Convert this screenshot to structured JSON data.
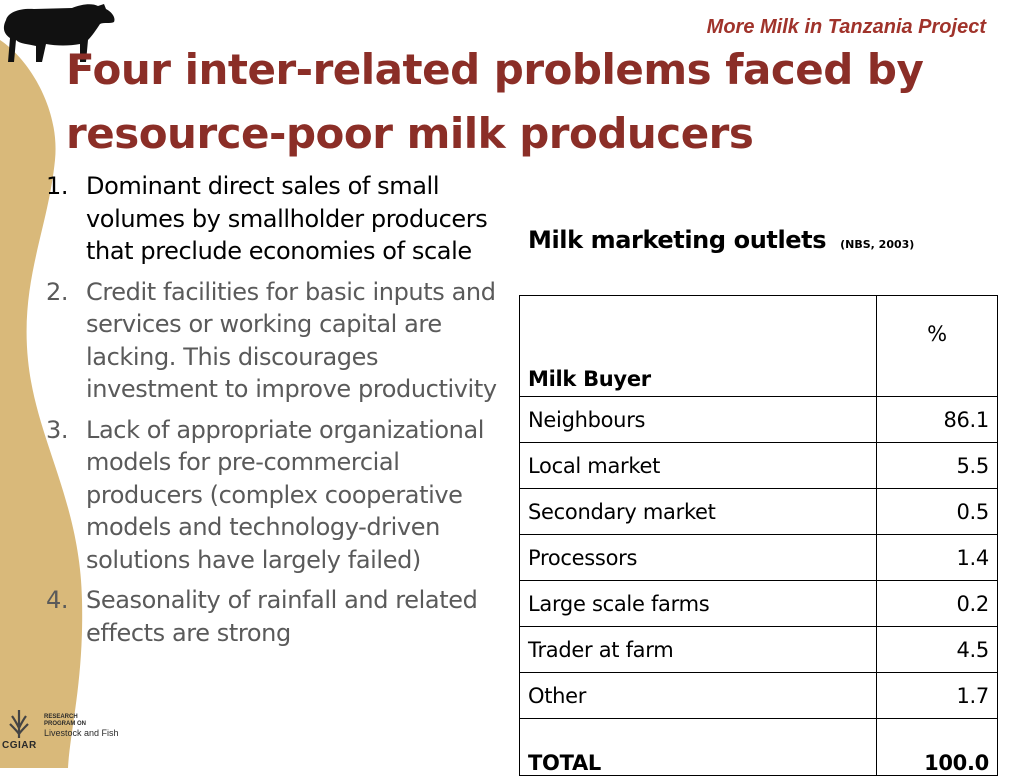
{
  "header": {
    "project_label": "More Milk in Tanzania Project",
    "title": "Four inter-related problems faced by resource-poor milk producers"
  },
  "problems": [
    {
      "num": "1.",
      "text": "Dominant direct sales of small volumes by smallholder producers that preclude economies of scale"
    },
    {
      "num": "2.",
      "text": "Credit facilities for basic inputs and services or working capital are lacking. This discourages investment to improve productivity"
    },
    {
      "num": "3.",
      "text": "Lack of appropriate organizational models for pre-commercial producers (complex cooperative models and technology-driven solutions have largely failed)"
    },
    {
      "num": "4.",
      "text": "Seasonality of rainfall  and related effects are strong"
    }
  ],
  "table": {
    "title": "Milk marketing outlets",
    "source": "(NBS, 2003)",
    "header": {
      "buyer": "Milk Buyer",
      "percent": "%"
    },
    "rows": [
      {
        "buyer": "Neighbours",
        "percent": "86.1"
      },
      {
        "buyer": "Local market",
        "percent": "5.5"
      },
      {
        "buyer": "Secondary market",
        "percent": "0.5"
      },
      {
        "buyer": "Processors",
        "percent": "1.4"
      },
      {
        "buyer": "Large scale farms",
        "percent": "0.2"
      },
      {
        "buyer": "Trader at farm",
        "percent": "4.5"
      },
      {
        "buyer": "Other",
        "percent": "1.7"
      }
    ],
    "total": {
      "buyer": "TOTAL",
      "percent": "100.0"
    }
  },
  "logo": {
    "org": "CGIAR",
    "program_line1": "RESEARCH",
    "program_line2": "PROGRAM ON",
    "program_name": "Livestock and Fish"
  },
  "colors": {
    "title": "#8b2e27",
    "project_label": "#a0332b",
    "side_band": "#d9b97a",
    "muted_text": "#5a5a5a"
  }
}
